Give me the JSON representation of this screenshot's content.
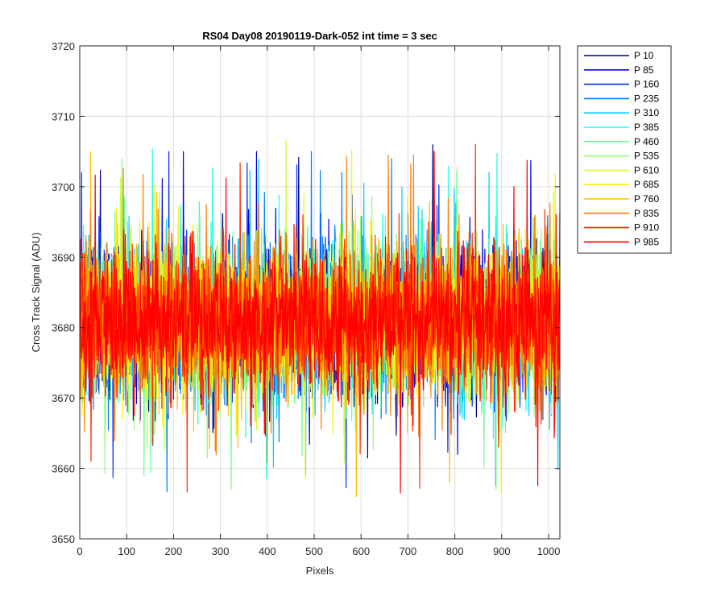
{
  "chart_data": {
    "type": "line",
    "title": "RS04 Day08 20190119-Dark-052 int time = 3 sec",
    "xlabel": "Pixels",
    "ylabel": "Cross Track Signal (ADU)",
    "xlim": [
      0,
      1024
    ],
    "ylim": [
      3650,
      3720
    ],
    "xticks": [
      0,
      100,
      200,
      300,
      400,
      500,
      600,
      700,
      800,
      900,
      1000
    ],
    "yticks": [
      3650,
      3660,
      3670,
      3680,
      3690,
      3700,
      3710,
      3720
    ],
    "grid": true,
    "legend_position": "outside-top-right",
    "x_range_per_series": [
      1,
      1024
    ],
    "series": [
      {
        "name": "P 10",
        "color": "#00008F",
        "mean": 3681,
        "spread": 5.0,
        "min": 3651,
        "max": 3708
      },
      {
        "name": "P 85",
        "color": "#0000DF",
        "mean": 3681,
        "spread": 5.0,
        "min": 3651,
        "max": 3705
      },
      {
        "name": "P 160",
        "color": "#0030FF",
        "mean": 3681,
        "spread": 5.0,
        "min": 3655,
        "max": 3705
      },
      {
        "name": "P 235",
        "color": "#0080FF",
        "mean": 3681,
        "spread": 5.0,
        "min": 3652,
        "max": 3705
      },
      {
        "name": "P 310",
        "color": "#00D0FF",
        "mean": 3681,
        "spread": 5.0,
        "min": 3650,
        "max": 3708
      },
      {
        "name": "P 385",
        "color": "#20FFDF",
        "mean": 3681,
        "spread": 5.0,
        "min": 3656,
        "max": 3706
      },
      {
        "name": "P 460",
        "color": "#70FF8F",
        "mean": 3681,
        "spread": 5.0,
        "min": 3657,
        "max": 3704
      },
      {
        "name": "P 535",
        "color": "#8FFF70",
        "mean": 3681,
        "spread": 5.0,
        "min": 3658,
        "max": 3711
      },
      {
        "name": "P 610",
        "color": "#CFFF30",
        "mean": 3681,
        "spread": 5.0,
        "min": 3655,
        "max": 3709
      },
      {
        "name": "P 685",
        "color": "#FFEF00",
        "mean": 3681,
        "spread": 5.0,
        "min": 3651,
        "max": 3709
      },
      {
        "name": "P 760",
        "color": "#FFBF00",
        "mean": 3681,
        "spread": 5.0,
        "min": 3656,
        "max": 3709
      },
      {
        "name": "P 835",
        "color": "#FF7F00",
        "mean": 3681,
        "spread": 5.0,
        "min": 3657,
        "max": 3707
      },
      {
        "name": "P 910",
        "color": "#FF3000",
        "mean": 3681,
        "spread": 5.0,
        "min": 3655,
        "max": 3706
      },
      {
        "name": "P 985",
        "color": "#FF0000",
        "mean": 3681,
        "spread": 5.0,
        "min": 3655,
        "max": 3705
      }
    ]
  }
}
